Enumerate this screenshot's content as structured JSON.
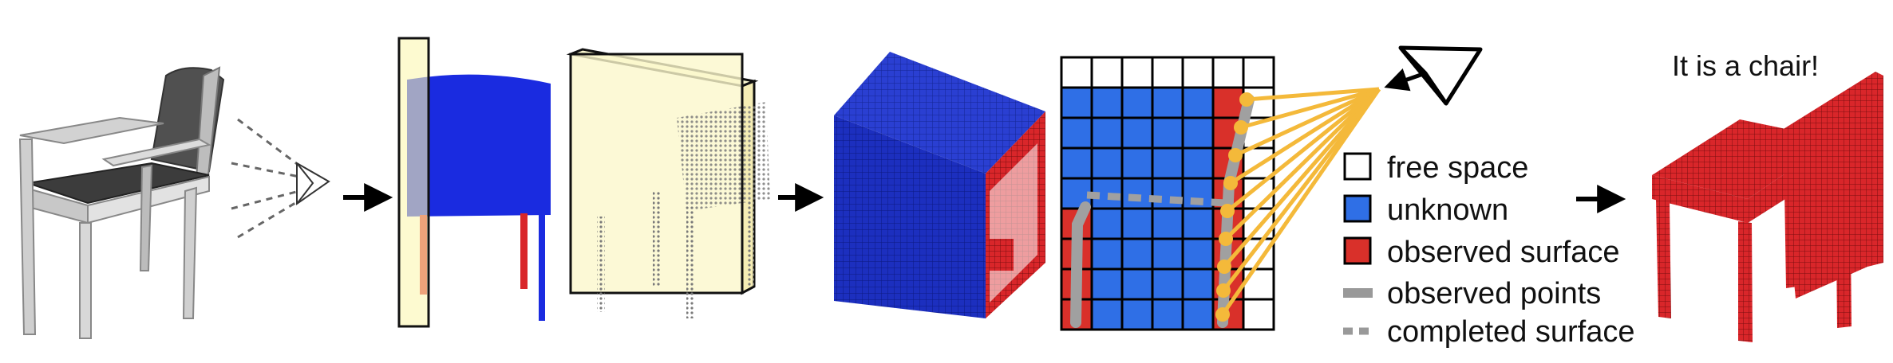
{
  "caption": "It is a chair!",
  "legend": {
    "free_space": "free space",
    "unknown": "unknown",
    "observed_surface": "observed surface",
    "observed_points": "observed points",
    "completed_surface": "completed surface"
  },
  "colors": {
    "free": "#ffffff",
    "unknown": "#2f6fe6",
    "unknown_dark": "#1a2fbf",
    "observed": "#d9302a",
    "points": "#a0a0a0",
    "rays": "#f4b93a",
    "highlight": "#fbf8c8",
    "chair_dark": "#4a4a4a",
    "chair_light": "#d6d6d6"
  },
  "grid": {
    "rows": 9,
    "cols": 7,
    "states": [
      "FFFFFFF",
      "UUUUUOF",
      "UUUUUOF",
      "UUUUUOF",
      "UUUUUOF",
      "OUUUUOF",
      "OUUUUOF",
      "OUUUUOF",
      "OUUUUOF"
    ]
  }
}
